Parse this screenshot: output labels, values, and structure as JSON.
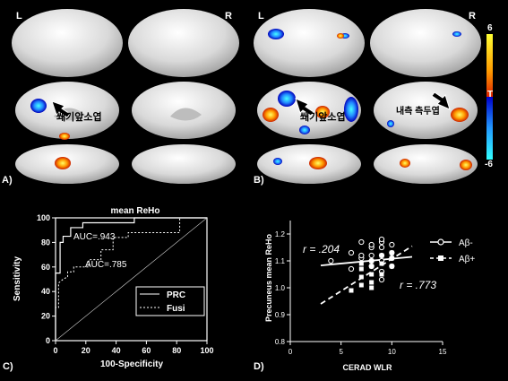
{
  "panels": {
    "a_label": "A)",
    "b_label": "B)",
    "c_label": "C)",
    "d_label": "D)"
  },
  "hemi": {
    "left": "L",
    "right": "R"
  },
  "annotations": {
    "precuneus_a": "쐐기앞소엽",
    "precuneus_b": "쐐기앞소엽",
    "entorhinal": "내측 측두엽"
  },
  "colorbar": {
    "max": "6",
    "mid": "T",
    "min": "-6",
    "colors": [
      "#ffff33",
      "#ff9900",
      "#dd2200",
      "#0000cc",
      "#2299ff",
      "#33ffff"
    ]
  },
  "roc": {
    "title": "mean ReHo",
    "xlabel": "100-Specificity",
    "ylabel": "Sensitivity",
    "auc_prc": "AUC=.943",
    "auc_fusi": "AUC=.785",
    "legend_prc": "PRC",
    "legend_fusi": "Fusi"
  },
  "scatter": {
    "xlabel": "CERAD WLR",
    "ylabel": "Precuneus mean ReHo",
    "r_abeta_neg": "r = .204",
    "r_abeta_pos": "r = .773",
    "legend_neg": "Aβ-",
    "legend_pos": "Aβ+"
  },
  "chart_data": [
    {
      "type": "line",
      "title": "mean ReHo",
      "xlabel": "100-Specificity",
      "ylabel": "Sensitivity",
      "xlim": [
        0,
        100
      ],
      "ylim": [
        0,
        100
      ],
      "xticks": [
        0,
        20,
        40,
        60,
        80,
        100
      ],
      "yticks": [
        0,
        20,
        40,
        60,
        80,
        100
      ],
      "series": [
        {
          "name": "PRC",
          "style": "solid",
          "x": [
            0,
            0,
            3,
            3,
            5,
            5,
            10,
            10,
            18,
            18,
            52,
            52,
            100
          ],
          "y": [
            0,
            55,
            55,
            80,
            80,
            85,
            85,
            92,
            92,
            96,
            96,
            100,
            100
          ]
        },
        {
          "name": "Fusi",
          "style": "dashed",
          "x": [
            0,
            0,
            2,
            2,
            5,
            8,
            8,
            12,
            12,
            22,
            22,
            30,
            30,
            38,
            38,
            48,
            48,
            82,
            82,
            100
          ],
          "y": [
            0,
            27,
            27,
            47,
            50,
            52,
            56,
            56,
            60,
            60,
            66,
            66,
            74,
            74,
            84,
            84,
            88,
            88,
            100,
            100
          ]
        },
        {
          "name": "reference",
          "style": "solid-thin",
          "x": [
            0,
            100
          ],
          "y": [
            0,
            100
          ]
        }
      ]
    },
    {
      "type": "scatter",
      "xlabel": "CERAD WLR",
      "ylabel": "Precuneus mean ReHo",
      "xlim": [
        0,
        15
      ],
      "ylim": [
        0.8,
        1.25
      ],
      "xticks": [
        0,
        5,
        10,
        15
      ],
      "yticks": [
        0.8,
        0.9,
        1.0,
        1.1,
        1.2
      ],
      "series": [
        {
          "name": "Aβ-",
          "marker": "open-circle",
          "x": [
            4,
            6,
            7,
            7,
            7,
            8,
            8,
            8,
            8,
            8,
            9,
            9,
            9,
            9,
            9,
            9,
            9,
            10,
            10,
            10,
            10,
            6
          ],
          "y": [
            1.1,
            1.13,
            1.11,
            1.12,
            1.17,
            1.08,
            1.1,
            1.12,
            1.15,
            1.16,
            1.03,
            1.06,
            1.1,
            1.12,
            1.15,
            1.17,
            1.18,
            1.08,
            1.11,
            1.13,
            1.16,
            1.07
          ]
        },
        {
          "name": "Aβ+",
          "marker": "filled-square",
          "x": [
            6,
            7,
            7,
            7,
            8,
            8,
            8,
            8,
            9,
            9,
            9,
            10,
            10,
            10,
            8,
            7
          ],
          "y": [
            0.99,
            1.01,
            1.04,
            1.07,
            1.02,
            1.05,
            1.08,
            1.1,
            1.05,
            1.09,
            1.12,
            1.08,
            1.11,
            1.13,
            1.0,
            1.09
          ]
        }
      ],
      "fits": [
        {
          "name": "Aβ-",
          "style": "solid",
          "x": [
            3,
            12
          ],
          "y": [
            1.083,
            1.115
          ]
        },
        {
          "name": "Aβ+",
          "style": "dashed",
          "x": [
            3,
            12
          ],
          "y": [
            0.94,
            1.155
          ]
        }
      ]
    }
  ]
}
